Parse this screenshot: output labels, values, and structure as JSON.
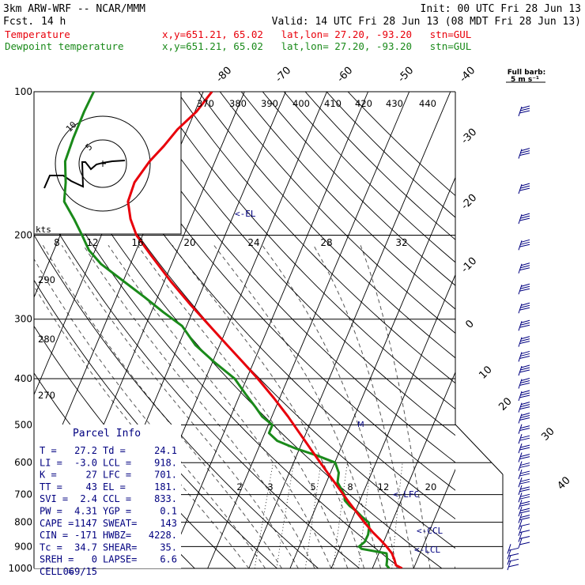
{
  "header": {
    "model": "3km ARW-WRF -- NCAR/MMM",
    "init": "Init: 00 UTC Fri 28 Jun 13",
    "fcst_label": "Fcst.",
    "fcst_value": "14 h",
    "valid": "Valid: 14 UTC Fri 28 Jun 13 (08 MDT Fri 28 Jun 13)"
  },
  "legend": [
    {
      "name": "Temperature",
      "coord_text": "x,y=651.21, 65.02   lat,lon= 27.20, -93.20   stn=GUL",
      "color": "#e8000b"
    },
    {
      "name": "Dewpoint temperature",
      "coord_text": "x,y=651.21, 65.02   lat,lon= 27.20, -93.20   stn=GUL",
      "color": "#1a8a1a"
    }
  ],
  "colors": {
    "temperature": "#e8000b",
    "dewpoint": "#1a8a1a",
    "annotation": "#000080",
    "frame": "#000000"
  },
  "barb_key": {
    "title": "Full barb:",
    "value": "5 m s⁻¹"
  },
  "chart_data": {
    "type": "line",
    "title": "",
    "xlabel": "",
    "ylabel": "",
    "y_scale": "log-pressure",
    "ylim": [
      1000,
      100
    ],
    "pressure_ticks": [
      100,
      200,
      300,
      400,
      500,
      600,
      700,
      800,
      900,
      1000
    ],
    "isotherm_labels": [
      "-80",
      "-70",
      "-60",
      "-50",
      "-40",
      "-30",
      "-20",
      "-10",
      "0",
      "10",
      "20",
      "30",
      "40"
    ],
    "theta_labels": [
      "370",
      "380",
      "390",
      "400",
      "410",
      "420",
      "430",
      "440"
    ],
    "theta_left_labels": [
      "290",
      "280",
      "270"
    ],
    "mixing_ratio_labels": [
      "2",
      "3",
      "5",
      "8",
      "12",
      "20"
    ],
    "series": [
      {
        "name": "Temperature",
        "pressure": [
          1000,
          985,
          960,
          930,
          900,
          870,
          840,
          800,
          760,
          720,
          680,
          640,
          600,
          560,
          520,
          480,
          440,
          400,
          370,
          340,
          310,
          280,
          250,
          220,
          200,
          185,
          170,
          155,
          140,
          130,
          120,
          110,
          100
        ],
        "values": [
          27.2,
          25.4,
          24.5,
          23.2,
          21.2,
          18.9,
          16.4,
          13.3,
          10.2,
          7.0,
          3.7,
          0.2,
          -3.5,
          -7.4,
          -11.6,
          -16.1,
          -21.3,
          -27.3,
          -32.5,
          -38.2,
          -44.4,
          -51.2,
          -58.4,
          -66.0,
          -71.5,
          -74.6,
          -77.0,
          -77.4,
          -75.9,
          -74.0,
          -72.4,
          -69.6,
          -67.9
        ]
      },
      {
        "name": "Dewpoint temperature",
        "pressure": [
          1000,
          985,
          960,
          930,
          910,
          900,
          880,
          850,
          820,
          800,
          780,
          760,
          740,
          720,
          700,
          660,
          630,
          600,
          580,
          560,
          540,
          520,
          500,
          480,
          460,
          430,
          400,
          370,
          340,
          310,
          290,
          270,
          250,
          230,
          215,
          200,
          185,
          170,
          155,
          140,
          125,
          110,
          100
        ],
        "values": [
          24.1,
          23.1,
          22.7,
          21.9,
          15.4,
          14.5,
          15.4,
          15.5,
          15.0,
          14.3,
          12.2,
          10.4,
          8.1,
          6.3,
          5.6,
          2.7,
          2.0,
          0.1,
          -5.0,
          -11.0,
          -16.2,
          -19.0,
          -19.0,
          -22.4,
          -24.8,
          -28.8,
          -32.9,
          -39.4,
          -45.9,
          -51.1,
          -57.1,
          -63.1,
          -69.8,
          -77.1,
          -81.5,
          -84.7,
          -88.3,
          -92.5,
          -94.1,
          -96.4,
          -96.8,
          -96.9,
          -96.6
        ]
      }
    ],
    "markers": [
      "<-EL",
      "<-LFC",
      "<-CCL",
      "<-LCL"
    ],
    "hodograph": {
      "unit_label": "kts",
      "ring_labels": [
        "5",
        "10"
      ]
    },
    "parcel_info": {
      "title": "Parcel Info",
      "rows": [
        [
          "T  =",
          "27.2",
          "Td =",
          "24.1"
        ],
        [
          "LI =",
          "-3.0",
          "LCL =",
          "918."
        ],
        [
          "K  =",
          "27",
          "LFC =",
          "701."
        ],
        [
          "TT =",
          "43",
          "EL =",
          "181."
        ],
        [
          "SVI =",
          "2.4",
          "CCL =",
          "833."
        ],
        [
          "PW =",
          "4.31",
          "YGP =",
          "0.1"
        ],
        [
          "CAPE =",
          "1147",
          "SWEAT=",
          "143"
        ],
        [
          "CIN =",
          "-171",
          "HWBZ=",
          "4228."
        ],
        [
          "Tc =",
          "34.7",
          "SHEAR=",
          "35."
        ],
        [
          "SREH =",
          "0",
          "LAPSE=",
          "6.6"
        ],
        [
          "CELL =",
          "069/15",
          "",
          ""
        ]
      ]
    }
  }
}
